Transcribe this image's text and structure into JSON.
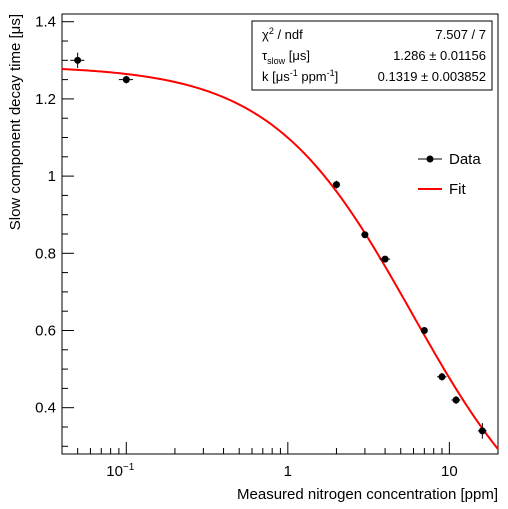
{
  "chart_data": {
    "type": "scatter",
    "xlabel": "Measured nitrogen concentration [ppm]",
    "ylabel": "Slow component decay time [μs]",
    "xscale": "log",
    "xlim": [
      0.04,
      20
    ],
    "ylim": [
      0.28,
      1.42
    ],
    "x_tick_labels": [
      "10",
      "1",
      "10"
    ],
    "x_tick_superscript": "−1",
    "y_tick_labels": [
      "0.4",
      "0.6",
      "0.8",
      "1",
      "1.2",
      "1.4"
    ],
    "y_ticks": [
      0.4,
      0.6,
      0.8,
      1.0,
      1.2,
      1.4
    ],
    "grid": false,
    "legend_position": "right",
    "series": [
      {
        "name": "Data",
        "kind": "points_with_errors",
        "color": "#000000",
        "points": [
          {
            "x": 0.05,
            "y": 1.3,
            "xerr": 0.005,
            "yerr": 0.02
          },
          {
            "x": 0.1,
            "y": 1.25,
            "xerr": 0.01,
            "yerr": 0.01
          },
          {
            "x": 2.0,
            "y": 0.978,
            "xerr": 0.1,
            "yerr": 0.01
          },
          {
            "x": 3.0,
            "y": 0.848,
            "xerr": 0.15,
            "yerr": 0.006
          },
          {
            "x": 4.0,
            "y": 0.785,
            "xerr": 0.3,
            "yerr": 0.006
          },
          {
            "x": 7.0,
            "y": 0.6,
            "xerr": 0.3,
            "yerr": 0.006
          },
          {
            "x": 9.0,
            "y": 0.48,
            "xerr": 0.6,
            "yerr": 0.01
          },
          {
            "x": 11.0,
            "y": 0.42,
            "xerr": 0.7,
            "yerr": 0.01
          },
          {
            "x": 16.0,
            "y": 0.34,
            "xerr": 1.0,
            "yerr": 0.02
          }
        ]
      },
      {
        "name": "Fit",
        "kind": "curve",
        "color": "#ff0000",
        "tau_slow": 1.286,
        "k": 0.1319
      }
    ],
    "stats_box": [
      {
        "label": "χ² / ndf",
        "value": "7.507 / 7"
      },
      {
        "label": "τslow [μs]",
        "value": "1.286 ± 0.01156"
      },
      {
        "label": "k [μs-1 ppm-1]",
        "value": "0.1319 ± 0.003852"
      }
    ]
  },
  "stats": {
    "chi2_label_base": "χ",
    "chi2_label_sup": "2",
    "chi2_label_rest": " / ndf",
    "chi2_value": "7.507 / 7",
    "tau_label_base": "τ",
    "tau_label_sub": "slow",
    "tau_label_rest": " [μs]",
    "tau_value": "1.286 ± 0.01156",
    "k_label_a": "k [μs",
    "k_label_sup1": "-1",
    "k_label_b": " ppm",
    "k_label_sup2": "-1",
    "k_label_c": "]",
    "k_value": "0.1319 ± 0.003852"
  },
  "legend": {
    "data_label": "Data",
    "fit_label": "Fit"
  }
}
